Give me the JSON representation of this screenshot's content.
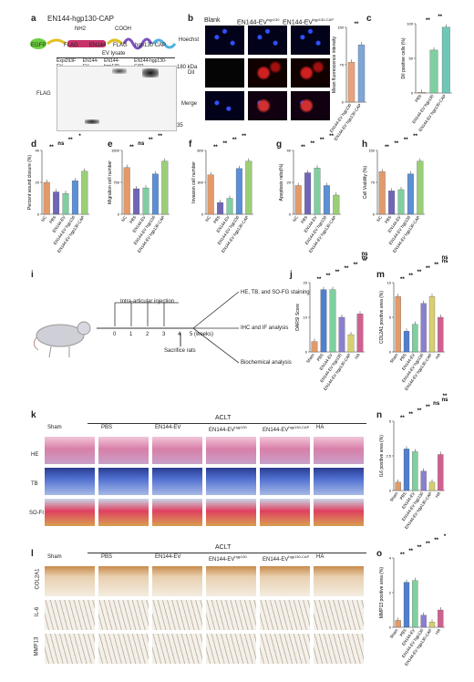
{
  "panels": {
    "a": {
      "label": "a",
      "construct_title": "EN144-hgp130-CAP",
      "segments": [
        "EGFP",
        "FLAG",
        "EN144",
        "FLAG",
        "hgp130 CAP"
      ],
      "nh2": "NH2",
      "cooh": "COOH",
      "ev_lysate": "EV lysate",
      "lanes": [
        "Expi293F EV",
        "EN144-EV",
        "EN144-hgp130",
        "EN144-hgp130-CAP"
      ],
      "blot_label": "FLAG",
      "marker_top": "180 kDa",
      "marker_bottom": "35"
    },
    "b": {
      "label": "b",
      "cols": [
        "Blank",
        "EN144-EV",
        "EN144-EV"
      ],
      "col_sup": [
        "",
        "hgp130",
        "hgp130-CAP"
      ],
      "rows": [
        "Hoechst",
        "DiI",
        "Merge"
      ]
    },
    "c": {
      "label": "c"
    },
    "d": {
      "label": "d"
    },
    "e": {
      "label": "e"
    },
    "f": {
      "label": "f"
    },
    "g": {
      "label": "g"
    },
    "h": {
      "label": "h"
    },
    "i": {
      "label": "i",
      "injection": "Intra-articular injection",
      "weeks": [
        "0",
        "1",
        "2",
        "3",
        "4",
        "5 (weeks)"
      ],
      "sacrifice": "Sacrifice rats",
      "outcomes": [
        "HE, TB, and SO-FG staining",
        "IHC and IF analysis",
        "Biochemical analysis"
      ]
    },
    "j": {
      "label": "j"
    },
    "k": {
      "label": "k",
      "acl": "ACLT",
      "cols": [
        "Sham",
        "PBS",
        "EN144-EV",
        "EN144-EV",
        "EN144-EV",
        "HA"
      ],
      "col_sup": [
        "",
        "",
        "",
        "hgp130",
        "hgp130-CAP",
        ""
      ],
      "rows": [
        "HE",
        "TB",
        "SO-FG"
      ]
    },
    "l": {
      "label": "l",
      "acl": "ACLT",
      "cols": [
        "Sham",
        "PBS",
        "EN144-EV",
        "EN144-EV",
        "EN144-EV",
        "HA"
      ],
      "col_sup": [
        "",
        "",
        "",
        "hgp130",
        "hgp130-CAP",
        ""
      ],
      "rows": [
        "COL2A1",
        "IL-6",
        "MMP13"
      ]
    },
    "m": {
      "label": "m"
    },
    "n": {
      "label": "n"
    },
    "o": {
      "label": "o"
    }
  },
  "sig": {
    "ss": "**",
    "s": "*",
    "ns": "ns"
  },
  "colors": {
    "orange": "#e29a6a",
    "purple": "#6f66b7",
    "green": "#7fcfa0",
    "pink": "#d06090",
    "red": "#c84040"
  },
  "chart_data": [
    {
      "id": "b_bar",
      "type": "bar",
      "ylabel": "Mean fluorescence intensity",
      "categories": [
        "EN144-EV hgp130",
        "EN144-EV hgp130-CAP"
      ],
      "values": [
        80,
        115
      ],
      "ylim": [
        0,
        150
      ],
      "colors": [
        "#e8a27b",
        "#7fa6d6"
      ],
      "sig": [
        "**"
      ]
    },
    {
      "id": "c",
      "type": "bar",
      "ylabel": "DiI positive cells (%)",
      "categories": [
        "PBS",
        "EN144-EV hgp130",
        "EN144-EV hgp130-CAP"
      ],
      "values": [
        1,
        62,
        95
      ],
      "ylim": [
        0,
        100
      ],
      "colors": [
        "#e8a27b",
        "#7fcfa0",
        "#6fc7b8"
      ],
      "sig": [
        "**",
        "**"
      ]
    },
    {
      "id": "d",
      "type": "bar",
      "ylabel": "Percent wound closure (%)",
      "categories": [
        "NC",
        "PBS",
        "EN144-EV",
        "EN144-EV hgp130",
        "EN144-EV hgp130-CAP"
      ],
      "values": [
        20,
        14,
        13,
        21,
        27
      ],
      "ylim": [
        0,
        40
      ],
      "colors": [
        "#e29a6a",
        "#6f66b7",
        "#7fcfa0",
        "#5b8fd6",
        "#9acf77"
      ],
      "sig": [
        "**",
        "ns",
        "**",
        "*"
      ]
    },
    {
      "id": "e",
      "type": "bar",
      "ylabel": "Migration cell number",
      "categories": [
        "NC",
        "PBS",
        "EN144-EV",
        "EN144-EV hgp130",
        "EN144-EV hgp130-CAP"
      ],
      "values": [
        1100,
        600,
        620,
        950,
        1250
      ],
      "ylim": [
        0,
        1500
      ],
      "colors": [
        "#e29a6a",
        "#6f66b7",
        "#7fcfa0",
        "#5b8fd6",
        "#9acf77"
      ],
      "sig": [
        "**",
        "ns",
        "**",
        "**"
      ]
    },
    {
      "id": "f",
      "type": "bar",
      "ylabel": "Invasion cell number",
      "categories": [
        "NC",
        "PBS",
        "EN144-EV",
        "EN144-EV hgp130",
        "EN144-EV hgp130-CAP"
      ],
      "values": [
        370,
        110,
        150,
        430,
        500
      ],
      "ylim": [
        0,
        600
      ],
      "colors": [
        "#e29a6a",
        "#6f66b7",
        "#7fcfa0",
        "#5b8fd6",
        "#9acf77"
      ],
      "sig": [
        "**",
        "**",
        "**",
        "**"
      ]
    },
    {
      "id": "g",
      "type": "bar",
      "ylabel": "Apoptosis ratio(%)",
      "categories": [
        "NC",
        "PBS",
        "EN144-EV",
        "EN144-EV hgp130",
        "EN144-EV hgp130-CAP"
      ],
      "values": [
        18,
        26,
        29,
        18,
        12
      ],
      "ylim": [
        0,
        40
      ],
      "colors": [
        "#e29a6a",
        "#6f66b7",
        "#7fcfa0",
        "#5b8fd6",
        "#9acf77"
      ],
      "sig": [
        "**",
        "**",
        "**",
        "**"
      ]
    },
    {
      "id": "h",
      "type": "bar",
      "ylabel": "Cell Viability (%)",
      "categories": [
        "NC",
        "PBS",
        "EN144-EV",
        "EN144-EV hgp130",
        "EN144-EV hgp130-CAP"
      ],
      "values": [
        100,
        55,
        58,
        95,
        125
      ],
      "ylim": [
        0,
        150
      ],
      "colors": [
        "#e29a6a",
        "#6f66b7",
        "#7fcfa0",
        "#5b8fd6",
        "#9acf77"
      ],
      "sig": [
        "**",
        "**",
        "**",
        "**"
      ]
    },
    {
      "id": "j",
      "type": "bar",
      "ylabel": "OARSI Score",
      "categories": [
        "Sham",
        "PBS",
        "EN144-EV",
        "EN144-EV hgp130",
        "EN144-EV hgp130-CAP",
        "HA"
      ],
      "values": [
        3,
        18,
        18,
        10,
        5,
        11
      ],
      "ylim": [
        0,
        20
      ],
      "colors": [
        "#e29a6a",
        "#4f7fd0",
        "#7fcfa0",
        "#8a7fd0",
        "#d8d070",
        "#d06090"
      ],
      "sig": [
        "**",
        "**",
        "**",
        "**",
        "**",
        "**",
        "ns",
        "ns"
      ]
    },
    {
      "id": "m",
      "type": "bar",
      "ylabel": "COL2A1 positive area (%)",
      "categories": [
        "Sham",
        "PBS",
        "EN144-EV",
        "EN144-EV hgp130",
        "EN144-EV hgp130-CAP",
        "HA"
      ],
      "values": [
        8,
        3,
        4,
        7,
        8,
        5
      ],
      "ylim": [
        0,
        10
      ],
      "colors": [
        "#e29a6a",
        "#4f7fd0",
        "#7fcfa0",
        "#8a7fd0",
        "#d8d070",
        "#d06090"
      ],
      "sig": [
        "**",
        "**",
        "**",
        "**",
        "**",
        "ns",
        "ns"
      ]
    },
    {
      "id": "n",
      "type": "bar",
      "ylabel": "IL6 positive area (%)",
      "categories": [
        "Sham",
        "PBS",
        "EN144-EV",
        "EN144-EV hgp130",
        "EN144-EV hgp130-CAP",
        "HA"
      ],
      "values": [
        0.6,
        3.0,
        2.8,
        1.4,
        0.6,
        2.6
      ],
      "ylim": [
        0,
        5
      ],
      "colors": [
        "#e29a6a",
        "#4f7fd0",
        "#7fcfa0",
        "#8a7fd0",
        "#d8d070",
        "#d06090"
      ],
      "sig": [
        "**",
        "**",
        "**",
        "**",
        "ns",
        "ns",
        "**"
      ]
    },
    {
      "id": "o",
      "type": "bar",
      "ylabel": "MMP13 positive area (%)",
      "categories": [
        "Sham",
        "PBS",
        "EN144-EV",
        "EN144-EV hgp130",
        "EN144-EV hgp130-CAP",
        "HA"
      ],
      "values": [
        0.4,
        2.6,
        2.7,
        0.7,
        0.3,
        1.0
      ],
      "ylim": [
        0,
        4
      ],
      "colors": [
        "#e29a6a",
        "#4f7fd0",
        "#7fcfa0",
        "#8a7fd0",
        "#d8d070",
        "#d06090"
      ],
      "sig": [
        "**",
        "**",
        "**",
        "**",
        "**",
        "*"
      ]
    }
  ]
}
